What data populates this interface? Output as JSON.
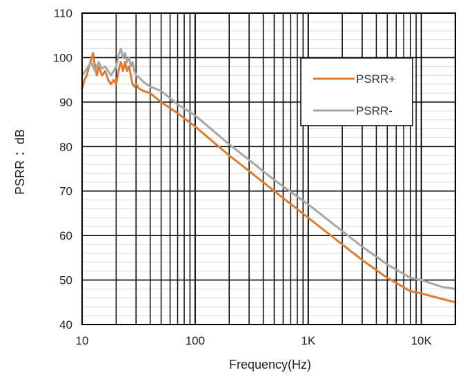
{
  "chart_data": {
    "type": "line",
    "title": "",
    "xlabel": "Frequency(Hz)",
    "ylabel": "PSRR ：dB",
    "xscale": "log",
    "xlim": [
      10,
      20000
    ],
    "ylim": [
      40,
      110
    ],
    "grid": true,
    "legend_position": "top-right",
    "x_ticks": [
      {
        "value": 10,
        "label": "10"
      },
      {
        "value": 100,
        "label": "100"
      },
      {
        "value": 1000,
        "label": "1K"
      },
      {
        "value": 10000,
        "label": "10K"
      }
    ],
    "y_ticks": [
      40,
      50,
      60,
      70,
      80,
      90,
      100,
      110
    ],
    "series": [
      {
        "name": "PSRR+",
        "color": "#e07b2e",
        "points": [
          [
            10,
            93
          ],
          [
            10.5,
            95
          ],
          [
            11,
            96
          ],
          [
            11.5,
            98
          ],
          [
            12,
            99.5
          ],
          [
            12.5,
            101
          ],
          [
            13,
            98
          ],
          [
            13.5,
            96
          ],
          [
            14,
            98
          ],
          [
            15,
            96
          ],
          [
            16,
            97
          ],
          [
            17,
            95
          ],
          [
            18,
            94
          ],
          [
            19,
            95
          ],
          [
            20,
            94
          ],
          [
            21,
            97
          ],
          [
            22,
            99
          ],
          [
            23,
            97
          ],
          [
            24,
            99
          ],
          [
            25,
            97
          ],
          [
            26,
            98
          ],
          [
            27,
            96
          ],
          [
            28,
            94
          ],
          [
            29,
            93.5
          ],
          [
            30,
            94
          ],
          [
            32,
            93
          ],
          [
            35,
            92.5
          ],
          [
            40,
            92
          ],
          [
            50,
            90
          ],
          [
            70,
            87.5
          ],
          [
            100,
            84.5
          ],
          [
            200,
            78
          ],
          [
            300,
            74.5
          ],
          [
            500,
            70
          ],
          [
            1000,
            64
          ],
          [
            2000,
            58
          ],
          [
            3000,
            54.5
          ],
          [
            5000,
            50.5
          ],
          [
            8000,
            47.5
          ],
          [
            10000,
            47
          ],
          [
            15000,
            45.8
          ],
          [
            20000,
            45
          ]
        ]
      },
      {
        "name": "PSRR-",
        "color": "#a6a6a6",
        "points": [
          [
            10,
            96
          ],
          [
            11,
            97.5
          ],
          [
            12,
            99
          ],
          [
            13,
            97
          ],
          [
            14,
            99
          ],
          [
            15,
            97.5
          ],
          [
            16,
            98
          ],
          [
            17,
            97
          ],
          [
            18,
            96
          ],
          [
            19,
            97
          ],
          [
            20,
            98
          ],
          [
            21,
            100.5
          ],
          [
            22,
            102
          ],
          [
            23,
            100
          ],
          [
            24,
            101
          ],
          [
            25,
            99
          ],
          [
            26,
            100
          ],
          [
            27,
            98
          ],
          [
            28,
            99
          ],
          [
            29,
            97
          ],
          [
            30,
            96
          ],
          [
            32,
            95.5
          ],
          [
            35,
            94.5
          ],
          [
            40,
            93.5
          ],
          [
            50,
            92.5
          ],
          [
            70,
            89.5
          ],
          [
            100,
            87
          ],
          [
            200,
            80.5
          ],
          [
            300,
            77
          ],
          [
            500,
            72.5
          ],
          [
            1000,
            67
          ],
          [
            2000,
            61
          ],
          [
            3000,
            57.5
          ],
          [
            5000,
            53.5
          ],
          [
            8000,
            50.5
          ],
          [
            10000,
            50
          ],
          [
            15000,
            48.5
          ],
          [
            20000,
            48
          ]
        ]
      }
    ]
  }
}
